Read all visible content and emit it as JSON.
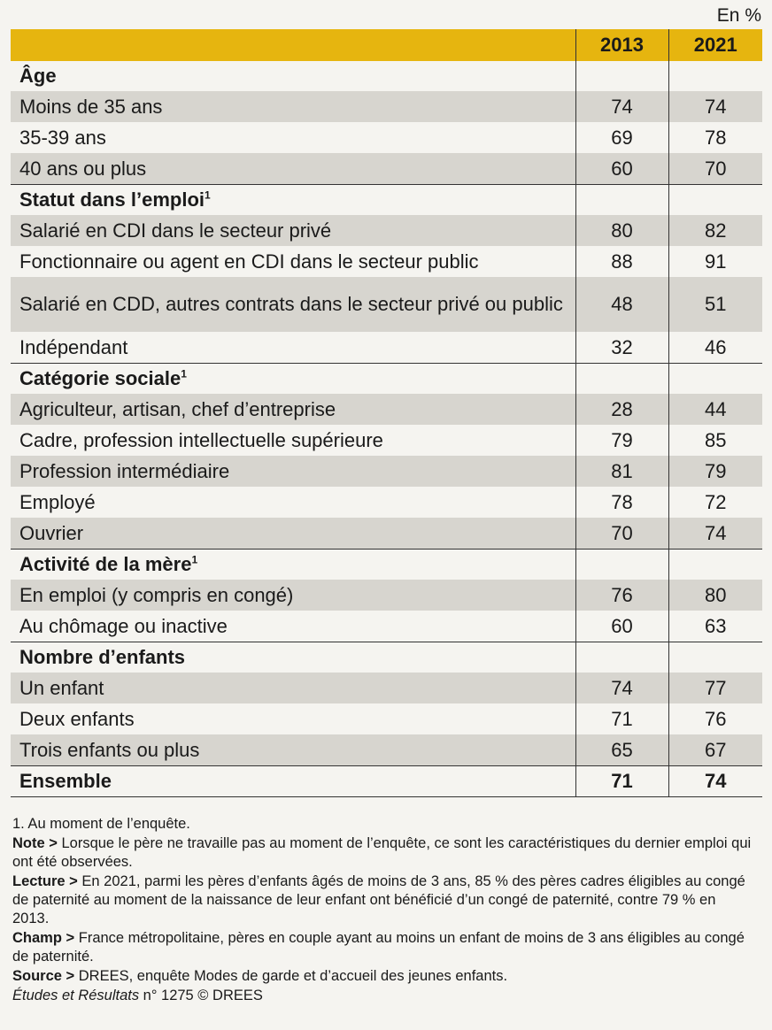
{
  "unit_label": "En %",
  "columns": [
    "2013",
    "2021"
  ],
  "sections": [
    {
      "title": "Âge",
      "sup": "",
      "rows": [
        {
          "label": "Moins de 35 ans",
          "v2013": "74",
          "v2021": "74"
        },
        {
          "label": "35-39 ans",
          "v2013": "69",
          "v2021": "78"
        },
        {
          "label": "40 ans ou plus",
          "v2013": "60",
          "v2021": "70"
        }
      ]
    },
    {
      "title": "Statut dans l’emploi",
      "sup": "1",
      "rows": [
        {
          "label": "Salarié en CDI dans le secteur privé",
          "v2013": "80",
          "v2021": "82"
        },
        {
          "label": "Fonctionnaire ou agent en CDI dans le secteur public",
          "v2013": "88",
          "v2021": "91"
        },
        {
          "label": "Salarié en CDD, autres contrats dans le secteur privé ou public",
          "v2013": "48",
          "v2021": "51"
        },
        {
          "label": "Indépendant",
          "v2013": "32",
          "v2021": "46"
        }
      ]
    },
    {
      "title": "Catégorie sociale",
      "sup": "1",
      "rows": [
        {
          "label": "Agriculteur, artisan, chef d’entreprise",
          "v2013": "28",
          "v2021": "44"
        },
        {
          "label": "Cadre, profession intellectuelle supérieure",
          "v2013": "79",
          "v2021": "85"
        },
        {
          "label": "Profession intermédiaire",
          "v2013": "81",
          "v2021": "79"
        },
        {
          "label": "Employé",
          "v2013": "78",
          "v2021": "72"
        },
        {
          "label": "Ouvrier",
          "v2013": "70",
          "v2021": "74"
        }
      ]
    },
    {
      "title": "Activité de la mère",
      "sup": "1",
      "rows": [
        {
          "label": "En emploi (y compris en congé)",
          "v2013": "76",
          "v2021": "80"
        },
        {
          "label": "Au chômage ou inactive",
          "v2013": "60",
          "v2021": "63"
        }
      ]
    },
    {
      "title": "Nombre d’enfants",
      "sup": "",
      "rows": [
        {
          "label": "Un enfant",
          "v2013": "74",
          "v2021": "77"
        },
        {
          "label": "Deux enfants",
          "v2013": "71",
          "v2021": "76"
        },
        {
          "label": "Trois enfants ou plus",
          "v2013": "65",
          "v2021": "67"
        }
      ]
    }
  ],
  "total": {
    "label": "Ensemble",
    "v2013": "71",
    "v2021": "74"
  },
  "notes": {
    "footnote": "1. Au moment de l’enquête.",
    "note_label": "Note >",
    "note_text": " Lorsque le père ne travaille pas au moment de l’enquête, ce sont les caractéristiques du dernier emploi qui ont été observées.",
    "lecture_label": "Lecture >",
    "lecture_text": " En 2021, parmi les pères d’enfants âgés de moins de 3 ans, 85 % des pères cadres éligibles au congé de paternité au moment de la naissance de leur enfant ont bénéficié d’un congé de paternité, contre 79 % en 2013.",
    "champ_label": "Champ >",
    "champ_text": " France métropolitaine, pères en couple ayant au moins un enfant de moins de 3 ans éligibles au congé de paternité.",
    "source_label": "Source >",
    "source_text": " DREES, enquête Modes de garde et d’accueil des jeunes enfants.",
    "credit_italic": "Études et Résultats",
    "credit_rest": " n° 1275 © DREES"
  },
  "colors": {
    "header": "#e6b50f",
    "shade": "#d7d5cf",
    "background": "#f5f4f0"
  },
  "chart_data": {
    "type": "table",
    "title": "",
    "unit": "En %",
    "columns": [
      "2013",
      "2021"
    ],
    "rows": [
      {
        "group": "Âge",
        "label": "Moins de 35 ans",
        "values": [
          74,
          74
        ]
      },
      {
        "group": "Âge",
        "label": "35-39 ans",
        "values": [
          69,
          78
        ]
      },
      {
        "group": "Âge",
        "label": "40 ans ou plus",
        "values": [
          60,
          70
        ]
      },
      {
        "group": "Statut dans l’emploi",
        "label": "Salarié en CDI dans le secteur privé",
        "values": [
          80,
          82
        ]
      },
      {
        "group": "Statut dans l’emploi",
        "label": "Fonctionnaire ou agent en CDI dans le secteur public",
        "values": [
          88,
          91
        ]
      },
      {
        "group": "Statut dans l’emploi",
        "label": "Salarié en CDD, autres contrats dans le secteur privé ou public",
        "values": [
          48,
          51
        ]
      },
      {
        "group": "Statut dans l’emploi",
        "label": "Indépendant",
        "values": [
          32,
          46
        ]
      },
      {
        "group": "Catégorie sociale",
        "label": "Agriculteur, artisan, chef d’entreprise",
        "values": [
          28,
          44
        ]
      },
      {
        "group": "Catégorie sociale",
        "label": "Cadre, profession intellectuelle supérieure",
        "values": [
          79,
          85
        ]
      },
      {
        "group": "Catégorie sociale",
        "label": "Profession intermédiaire",
        "values": [
          81,
          79
        ]
      },
      {
        "group": "Catégorie sociale",
        "label": "Employé",
        "values": [
          78,
          72
        ]
      },
      {
        "group": "Catégorie sociale",
        "label": "Ouvrier",
        "values": [
          70,
          74
        ]
      },
      {
        "group": "Activité de la mère",
        "label": "En emploi (y compris en congé)",
        "values": [
          76,
          80
        ]
      },
      {
        "group": "Activité de la mère",
        "label": "Au chômage ou inactive",
        "values": [
          60,
          63
        ]
      },
      {
        "group": "Nombre d’enfants",
        "label": "Un enfant",
        "values": [
          74,
          77
        ]
      },
      {
        "group": "Nombre d’enfants",
        "label": "Deux enfants",
        "values": [
          71,
          76
        ]
      },
      {
        "group": "Nombre d’enfants",
        "label": "Trois enfants ou plus",
        "values": [
          65,
          67
        ]
      },
      {
        "group": "",
        "label": "Ensemble",
        "values": [
          71,
          74
        ]
      }
    ]
  }
}
